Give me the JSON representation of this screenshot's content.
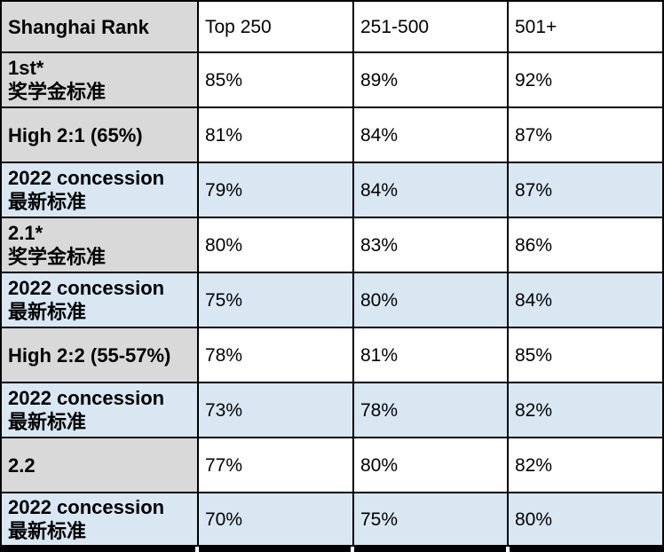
{
  "table": {
    "header": {
      "cells": [
        "Shanghai Rank",
        "Top 250",
        "251-500",
        "501+"
      ]
    },
    "rows": [
      {
        "label_en": "1st*",
        "label_zh": "奖学金标准",
        "style": "gray",
        "values": [
          "85%",
          "89%",
          "92%"
        ]
      },
      {
        "label_en": "High 2:1 (65%)",
        "label_zh": "",
        "style": "gray",
        "values": [
          "81%",
          "84%",
          "87%"
        ]
      },
      {
        "label_en": "2022 concession",
        "label_zh": "最新标准",
        "style": "blue",
        "values": [
          "79%",
          "84%",
          "87%"
        ]
      },
      {
        "label_en": "2.1*",
        "label_zh": "奖学金标准",
        "style": "gray",
        "values": [
          "80%",
          "83%",
          "86%"
        ]
      },
      {
        "label_en": "2022 concession",
        "label_zh": "最新标准",
        "style": "blue",
        "values": [
          "75%",
          "80%",
          "84%"
        ]
      },
      {
        "label_en": "High 2:2 (55-57%)",
        "label_zh": "",
        "style": "gray",
        "values": [
          "78%",
          "81%",
          "85%"
        ]
      },
      {
        "label_en": "2022 concession",
        "label_zh": "最新标准",
        "style": "blue",
        "values": [
          "73%",
          "78%",
          "82%"
        ]
      },
      {
        "label_en": "2.2",
        "label_zh": "",
        "style": "gray",
        "values": [
          "77%",
          "80%",
          "82%"
        ]
      },
      {
        "label_en": "2022 concession",
        "label_zh": "最新标准",
        "style": "blue",
        "values": [
          "70%",
          "75%",
          "80%"
        ]
      }
    ],
    "colors": {
      "label_gray": "#d9d9d9",
      "concession_blue": "#d9e7f3",
      "border_black": "#000000",
      "cell_white": "#ffffff"
    }
  }
}
